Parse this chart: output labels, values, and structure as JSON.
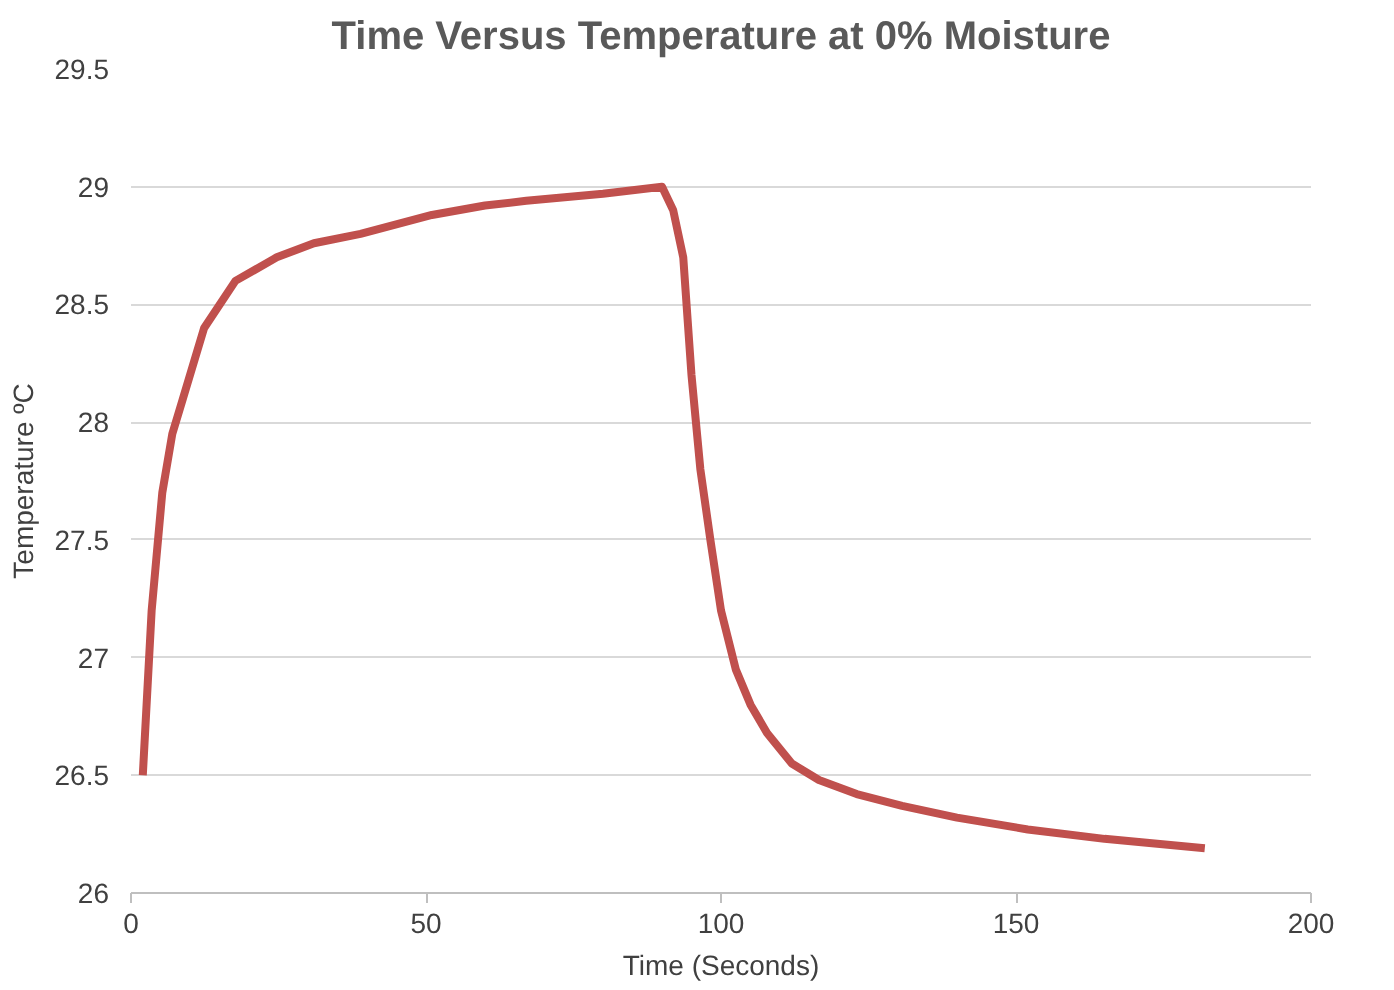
{
  "chart_data": {
    "type": "line",
    "title": "Time Versus Temperature at 0% Moisture",
    "xlabel": "Time (Seconds)",
    "ylabel": "Temperature ºC",
    "xlim": [
      0,
      200
    ],
    "xticks": [
      0,
      50,
      100,
      150,
      200
    ],
    "ylim": [
      26,
      29.5
    ],
    "yticks": [
      26,
      26.5,
      27,
      27.5,
      28,
      28.5,
      29,
      29.5
    ],
    "grid": "y",
    "marker": "none",
    "line_style": "solid",
    "series": [
      {
        "color": "#c0504d",
        "x": [
          2,
          3.5,
          5.3,
          7,
          8.8,
          12.4,
          17.7,
          24.7,
          31,
          38.9,
          51,
          60,
          67,
          80,
          90,
          91.9,
          93.6,
          95,
          96.5,
          98.2,
          100,
          102.5,
          105,
          107.8,
          112,
          116.6,
          123,
          130.7,
          140,
          152,
          165,
          182
        ],
        "values": [
          26.5,
          27.2,
          27.7,
          27.95,
          28.1,
          28.4,
          28.6,
          28.7,
          28.76,
          28.8,
          28.88,
          28.92,
          28.94,
          28.97,
          29.0,
          28.9,
          28.7,
          28.2,
          27.8,
          27.5,
          27.2,
          26.95,
          26.8,
          26.68,
          26.55,
          26.48,
          26.42,
          26.37,
          26.32,
          26.27,
          26.23,
          26.19
        ]
      }
    ]
  }
}
